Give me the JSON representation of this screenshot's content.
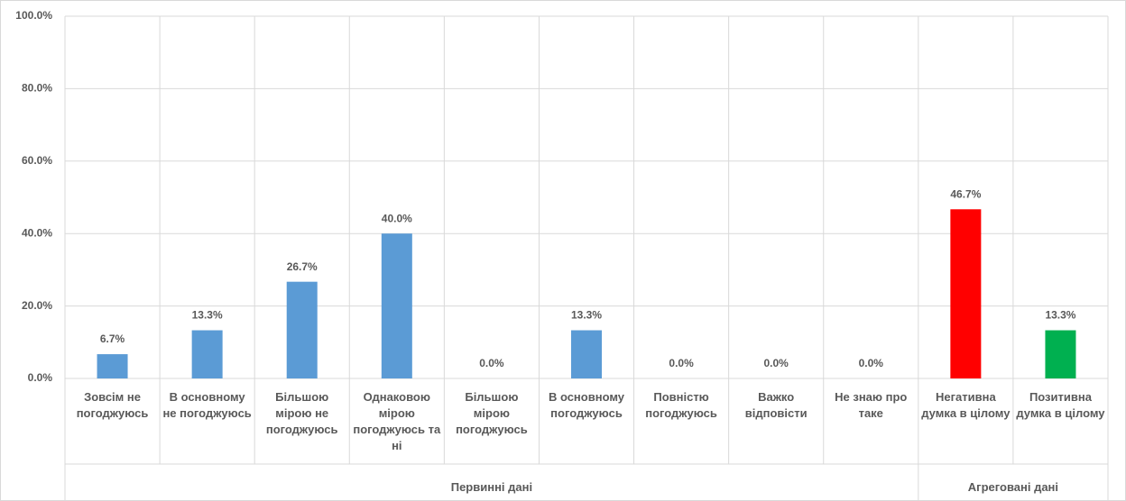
{
  "chart_data": {
    "type": "bar",
    "categories": [
      "Зовсім не погоджуюсь",
      "В основному не погоджуюсь",
      "Більшою мірою не погоджуюсь",
      "Однаковою мірою погоджуюсь та ні",
      "Більшою мірою погоджуюсь",
      "В основному погоджуюсь",
      "Повністю погоджуюсь",
      "Важко відповісти",
      "Не знаю про таке",
      "Негативна думка в цілому",
      "Позитивна думка в цілому"
    ],
    "values": [
      6.7,
      13.3,
      26.7,
      40.0,
      0.0,
      13.3,
      0.0,
      0.0,
      0.0,
      46.7,
      13.3
    ],
    "value_labels": [
      "6.7%",
      "13.3%",
      "26.7%",
      "40.0%",
      "0.0%",
      "13.3%",
      "0.0%",
      "0.0%",
      "0.0%",
      "46.7%",
      "13.3%"
    ],
    "colors": [
      "#5b9bd5",
      "#5b9bd5",
      "#5b9bd5",
      "#5b9bd5",
      "#5b9bd5",
      "#5b9bd5",
      "#5b9bd5",
      "#5b9bd5",
      "#5b9bd5",
      "#ff0000",
      "#00b050"
    ],
    "groups": [
      {
        "name": "Первинні дані",
        "span": [
          0,
          8
        ]
      },
      {
        "name": "Агреговані дані",
        "span": [
          9,
          10
        ]
      }
    ],
    "ylim": [
      0,
      100
    ],
    "yticks": [
      {
        "value": 0,
        "label": "0.0%"
      },
      {
        "value": 20,
        "label": "20.0%"
      },
      {
        "value": 40,
        "label": "40.0%"
      },
      {
        "value": 60,
        "label": "60.0%"
      },
      {
        "value": 80,
        "label": "80.0%"
      },
      {
        "value": 100,
        "label": "100.0%"
      }
    ],
    "grid": true
  }
}
